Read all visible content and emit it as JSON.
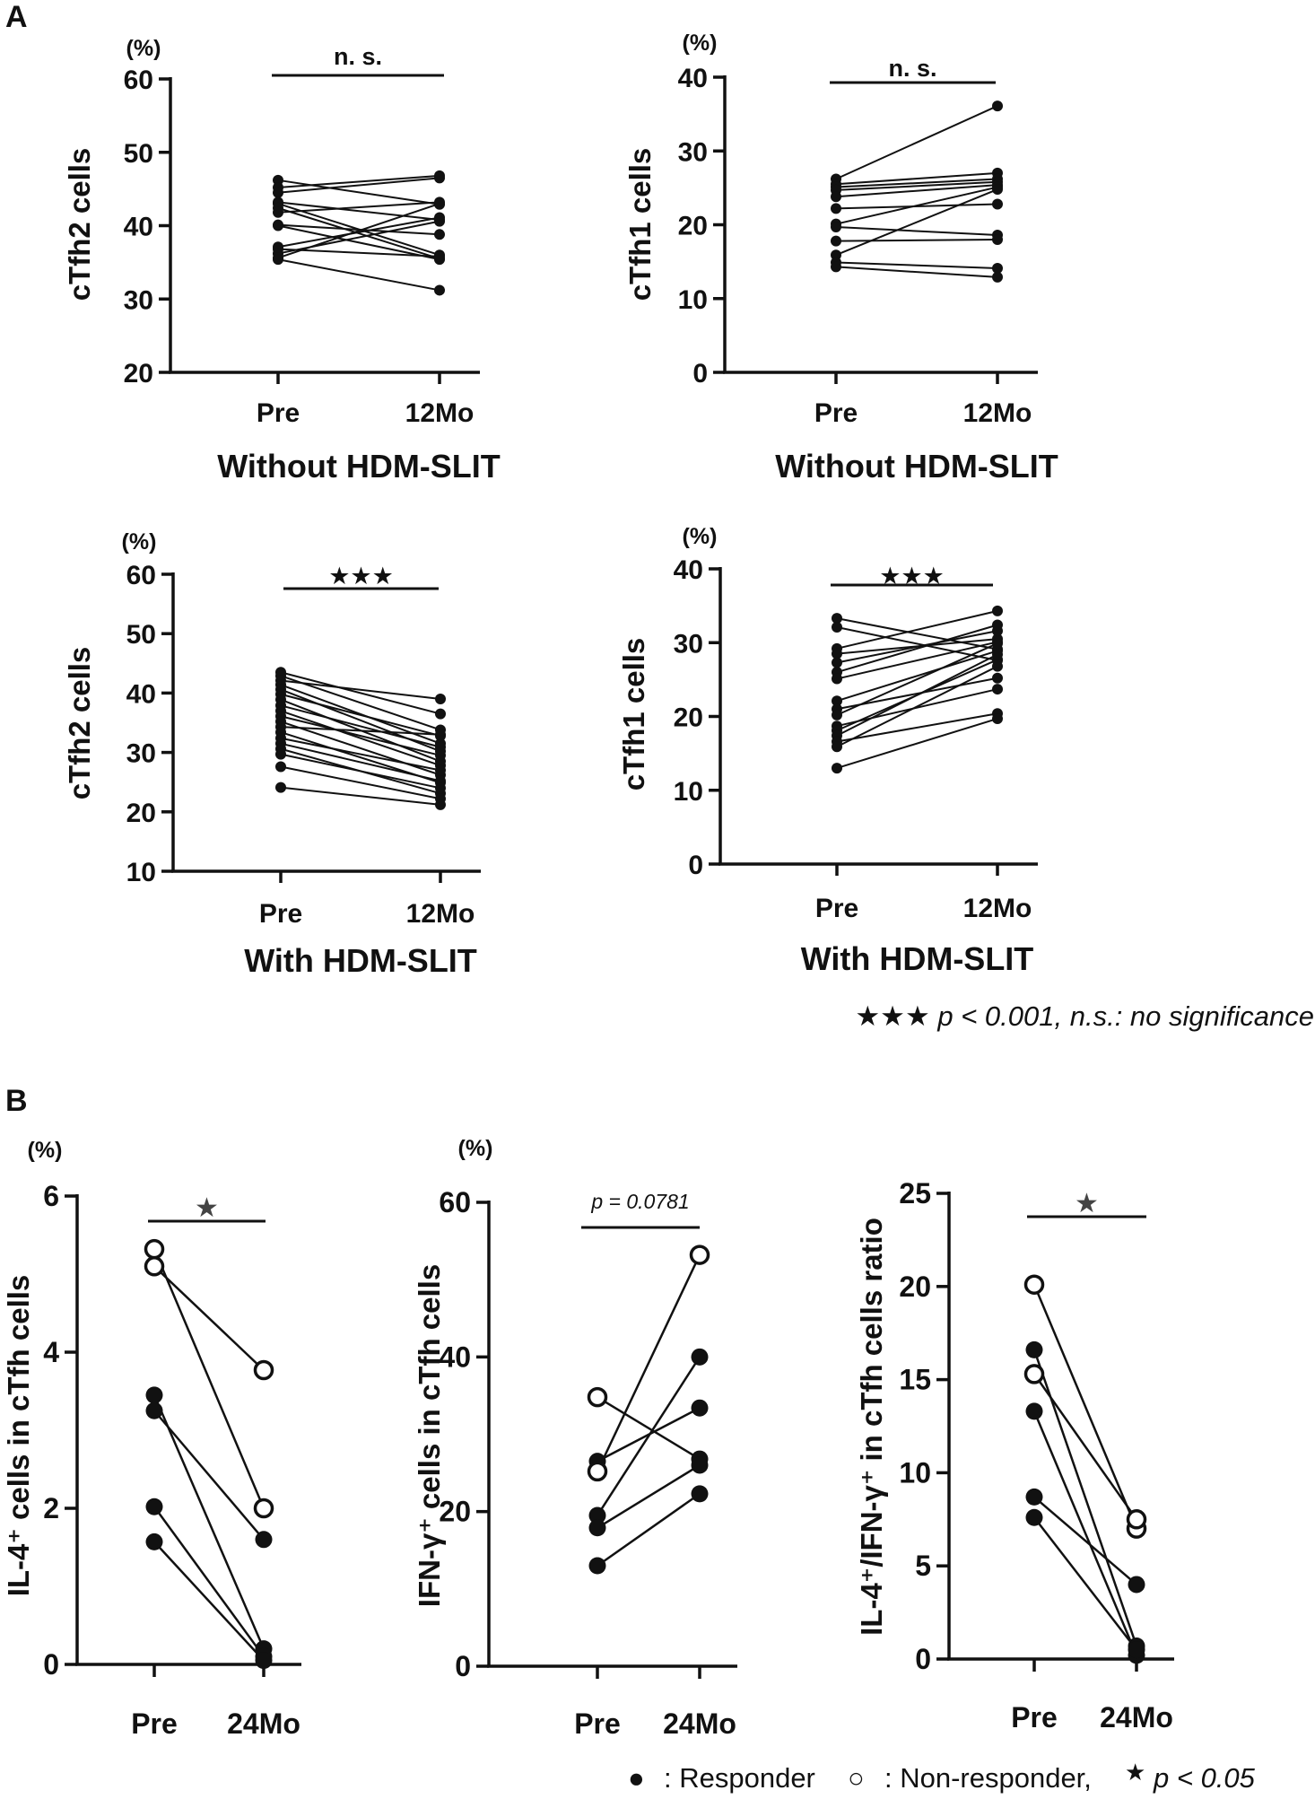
{
  "figure": {
    "panel_a_label": "A",
    "panel_b_label": "B",
    "caption_a": "★★★ p < 0.001, n.s.: no significance",
    "legend_b": {
      "responder_symbol": "●",
      "responder_label": ": Responder",
      "nonresponder_symbol": "○",
      "nonresponder_label": ": Non-responder,",
      "star_symbol": "★",
      "star_label": "p < 0.05"
    }
  },
  "chart_data": [
    {
      "id": "a1",
      "type": "line",
      "panel": "A",
      "marker": "small",
      "unit": "(%)",
      "ylabel": "cTfh2 cells",
      "xlabel": "Without HDM-SLIT",
      "categories": [
        "Pre",
        "12Mo"
      ],
      "ylim": [
        20,
        60
      ],
      "yticks": [
        20,
        30,
        40,
        50,
        60
      ],
      "sig": "n. s.",
      "pairs": [
        [
          46.2,
          42.9
        ],
        [
          45.2,
          46.8
        ],
        [
          44.5,
          46.5
        ],
        [
          43.2,
          40.8
        ],
        [
          43.0,
          36.0
        ],
        [
          42.4,
          35.5
        ],
        [
          41.8,
          43.2
        ],
        [
          40.1,
          38.8
        ],
        [
          40.0,
          35.4
        ],
        [
          37.1,
          41.1
        ],
        [
          36.8,
          35.8
        ],
        [
          36.2,
          40.6
        ],
        [
          35.6,
          43.0
        ],
        [
          35.4,
          31.2
        ]
      ]
    },
    {
      "id": "a2",
      "type": "line",
      "panel": "A",
      "marker": "small",
      "unit": "(%)",
      "ylabel": "cTfh1 cells",
      "xlabel": "Without HDM-SLIT",
      "categories": [
        "Pre",
        "12Mo"
      ],
      "ylim": [
        0,
        40
      ],
      "yticks": [
        0,
        10,
        20,
        30,
        40
      ],
      "sig": "n. s.",
      "pairs": [
        [
          26.2,
          36.1
        ],
        [
          25.5,
          27.0
        ],
        [
          25.1,
          26.2
        ],
        [
          24.7,
          25.8
        ],
        [
          23.8,
          25.4
        ],
        [
          22.2,
          22.8
        ],
        [
          20.1,
          25.1
        ],
        [
          19.7,
          18.6
        ],
        [
          17.8,
          18.0
        ],
        [
          15.9,
          24.8
        ],
        [
          14.9,
          14.1
        ],
        [
          14.3,
          12.9
        ]
      ]
    },
    {
      "id": "a3",
      "type": "line",
      "panel": "A",
      "marker": "small",
      "unit": "(%)",
      "ylabel": "cTfh2 cells",
      "xlabel": "With HDM-SLIT",
      "categories": [
        "Pre",
        "12Mo"
      ],
      "ylim": [
        10,
        60
      ],
      "yticks": [
        10,
        20,
        30,
        40,
        50,
        60
      ],
      "sig": "★★★",
      "pairs": [
        [
          43.5,
          36.5
        ],
        [
          42.9,
          33.8
        ],
        [
          42.1,
          39.0
        ],
        [
          41.4,
          31.5
        ],
        [
          40.6,
          30.2
        ],
        [
          39.8,
          32.8
        ],
        [
          38.9,
          28.5
        ],
        [
          37.9,
          30.9
        ],
        [
          37.0,
          27.8
        ],
        [
          36.1,
          29.5
        ],
        [
          35.2,
          26.2
        ],
        [
          34.3,
          33.0
        ],
        [
          33.4,
          24.9
        ],
        [
          32.4,
          27.0
        ],
        [
          31.5,
          25.2
        ],
        [
          30.6,
          23.1
        ],
        [
          29.7,
          24.0
        ],
        [
          27.6,
          22.2
        ],
        [
          24.1,
          21.2
        ]
      ]
    },
    {
      "id": "a4",
      "type": "line",
      "panel": "A",
      "marker": "small",
      "unit": "(%)",
      "ylabel": "cTfh1 cells",
      "xlabel": "With HDM-SLIT",
      "categories": [
        "Pre",
        "12Mo"
      ],
      "ylim": [
        0,
        40
      ],
      "yticks": [
        0,
        10,
        20,
        30,
        40
      ],
      "sig": "★★★",
      "pairs": [
        [
          33.3,
          29.1
        ],
        [
          32.1,
          27.6
        ],
        [
          29.2,
          34.3
        ],
        [
          28.5,
          30.5
        ],
        [
          27.3,
          31.6
        ],
        [
          26.0,
          32.4
        ],
        [
          25.1,
          30.1
        ],
        [
          22.1,
          28.9
        ],
        [
          21.0,
          25.2
        ],
        [
          20.2,
          29.9
        ],
        [
          18.7,
          23.7
        ],
        [
          18.1,
          27.7
        ],
        [
          17.4,
          28.4
        ],
        [
          16.6,
          20.4
        ],
        [
          15.9,
          26.8
        ],
        [
          13.0,
          19.7
        ]
      ]
    },
    {
      "id": "b1",
      "type": "line",
      "panel": "B",
      "marker": "large",
      "unit": "(%)",
      "ylabel": "IL-4⁺ cells in cTfh cells",
      "xlabel": "",
      "categories": [
        "Pre",
        "24Mo"
      ],
      "ylim": [
        0,
        6
      ],
      "yticks": [
        0,
        2,
        4,
        6
      ],
      "sig": "★",
      "pairs": [
        [
          5.32,
          2.0
        ],
        [
          5.1,
          3.77
        ],
        [
          3.45,
          0.2
        ],
        [
          3.25,
          1.6
        ],
        [
          2.02,
          0.1
        ],
        [
          1.57,
          0.05
        ]
      ],
      "responder": [
        false,
        false,
        true,
        true,
        true,
        true
      ],
      "responder_post": [
        false,
        false,
        true,
        true,
        true,
        true
      ]
    },
    {
      "id": "b2",
      "type": "line",
      "panel": "B",
      "marker": "large",
      "unit": "(%)",
      "ylabel": "IFN-γ⁺ cells in cTfh cells",
      "xlabel": "",
      "categories": [
        "Pre",
        "24Mo"
      ],
      "ylim": [
        0,
        60
      ],
      "yticks": [
        0,
        20,
        40,
        60
      ],
      "sig": "p = 0.0781",
      "pairs": [
        [
          34.8,
          26.8
        ],
        [
          26.5,
          33.4
        ],
        [
          25.2,
          53.2
        ],
        [
          19.5,
          40.0
        ],
        [
          17.9,
          26.0
        ],
        [
          13.0,
          22.3
        ]
      ],
      "responder": [
        false,
        true,
        false,
        true,
        true,
        true
      ],
      "responder_post": [
        true,
        true,
        false,
        true,
        true,
        true
      ]
    },
    {
      "id": "b3",
      "type": "line",
      "panel": "B",
      "marker": "large",
      "unit": "",
      "ylabel": "IL-4⁺/IFN-γ⁺ in cTfh cells ratio",
      "xlabel": "",
      "categories": [
        "Pre",
        "24Mo"
      ],
      "ylim": [
        0,
        25
      ],
      "yticks": [
        0,
        5,
        10,
        15,
        20,
        25
      ],
      "sig": "★",
      "pairs": [
        [
          20.1,
          7.0
        ],
        [
          16.6,
          0.7
        ],
        [
          15.3,
          7.5
        ],
        [
          13.3,
          0.2
        ],
        [
          8.7,
          4.0
        ],
        [
          7.6,
          0.5
        ]
      ],
      "responder": [
        false,
        true,
        false,
        true,
        true,
        true
      ],
      "responder_post": [
        false,
        true,
        false,
        true,
        true,
        true
      ]
    }
  ]
}
